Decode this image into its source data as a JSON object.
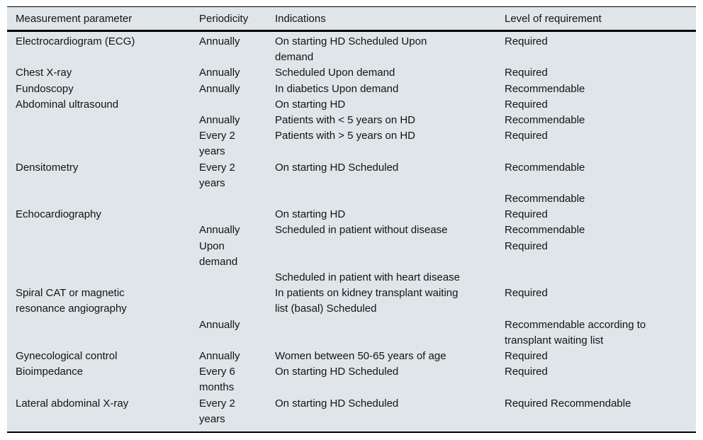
{
  "table": {
    "columns": [
      "Measurement parameter",
      "Periodicity",
      "Indications",
      "Level of requirement"
    ],
    "rows": [
      [
        [
          "Electrocardiogram (ECG)"
        ],
        [
          "Annually"
        ],
        [
          "On starting HD Scheduled Upon",
          "demand"
        ],
        [
          "Required"
        ]
      ],
      [
        [
          "Chest X-ray"
        ],
        [
          "Annually"
        ],
        [
          "Scheduled Upon demand"
        ],
        [
          "Required"
        ]
      ],
      [
        [
          "Fundoscopy"
        ],
        [
          "Annually"
        ],
        [
          "In diabetics Upon demand"
        ],
        [
          "Recommendable"
        ]
      ],
      [
        [
          "Abdominal ultrasound"
        ],
        [],
        [
          "On starting HD"
        ],
        [
          "Required"
        ]
      ],
      [
        [],
        [
          "Annually"
        ],
        [
          "Patients with < 5 years on HD"
        ],
        [
          "Recommendable"
        ]
      ],
      [
        [],
        [
          "Every 2",
          "years"
        ],
        [
          "Patients with > 5 years on HD"
        ],
        [
          "Required"
        ]
      ],
      [
        [
          "Densitometry"
        ],
        [
          "Every 2",
          "years"
        ],
        [
          "On starting HD Scheduled"
        ],
        [
          "Recommendable"
        ]
      ],
      [
        [],
        [],
        [],
        [
          "Recommendable"
        ]
      ],
      [
        [
          "Echocardiography"
        ],
        [],
        [
          "On starting HD"
        ],
        [
          "Required"
        ]
      ],
      [
        [],
        [
          "Annually"
        ],
        [
          "Scheduled in patient without disease"
        ],
        [
          "Recommendable"
        ]
      ],
      [
        [],
        [
          "Upon",
          "demand"
        ],
        [],
        [
          "Required"
        ]
      ],
      [
        [],
        [],
        [
          "Scheduled in patient with heart disease"
        ],
        []
      ],
      [
        [
          "Spiral CAT or magnetic",
          "resonance angiography"
        ],
        [],
        [
          "In patients on kidney transplant waiting",
          "list (basal) Scheduled"
        ],
        [
          "Required"
        ]
      ],
      [
        [],
        [
          "Annually"
        ],
        [],
        [
          "Recommendable according to",
          "transplant waiting list"
        ]
      ],
      [
        [
          "Gynecological control"
        ],
        [
          "Annually"
        ],
        [
          "Women between 50-65 years of age"
        ],
        [
          "Required"
        ]
      ],
      [
        [
          "Bioimpedance"
        ],
        [
          "Every 6",
          "months"
        ],
        [
          "On starting HD Scheduled"
        ],
        [
          "Required"
        ]
      ],
      [
        [
          "Lateral abdominal X-ray"
        ],
        [
          "Every 2",
          "years"
        ],
        [
          "On starting HD Scheduled"
        ],
        [
          "Required Recommendable"
        ]
      ]
    ]
  },
  "colors": {
    "table_background": "#dfe5e8",
    "rule": "#000000",
    "text": "#141414"
  }
}
